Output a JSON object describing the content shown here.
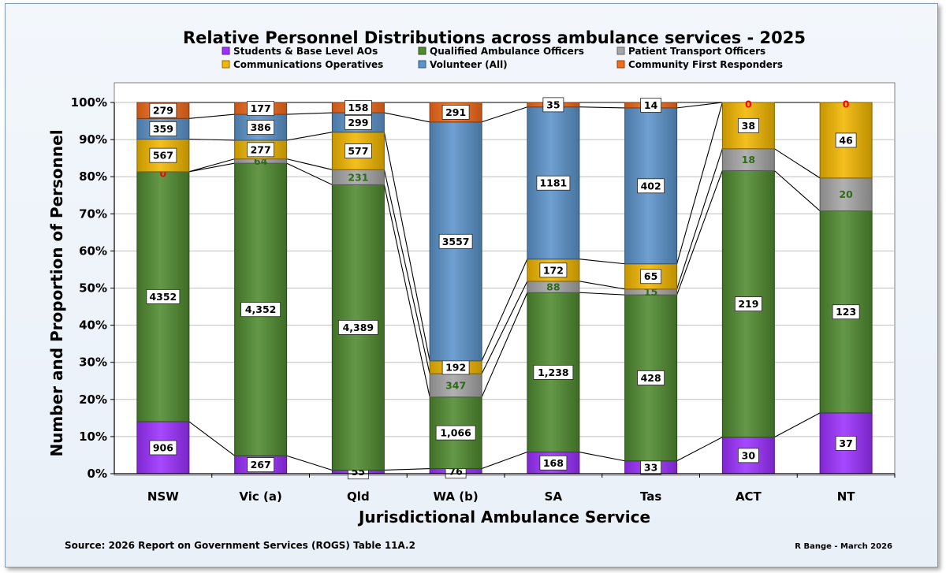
{
  "chart_data": {
    "type": "bar",
    "stacked": true,
    "normalized": true,
    "title": "Relative Personnel Distributions across ambulance services - 2025",
    "xlabel": "Jurisdictional Ambulance Service",
    "ylabel": "Number and Proportion of Personnel",
    "ylim": [
      0,
      100
    ],
    "y_ticks": [
      "0%",
      "10%",
      "20%",
      "30%",
      "40%",
      "50%",
      "60%",
      "70%",
      "80%",
      "90%",
      "100%"
    ],
    "categories": [
      "NSW",
      "Vic (a)",
      "Qld",
      "WA (b)",
      "SA",
      "Tas",
      "ACT",
      "NT"
    ],
    "series": [
      {
        "name": "Students & Base Level AOs",
        "color": "#9b30ff",
        "values": [
          906,
          267,
          55,
          76,
          168,
          33,
          30,
          37
        ],
        "labels": [
          "906",
          "267",
          "55",
          "76",
          "168",
          "33",
          "30",
          "37"
        ]
      },
      {
        "name": "Qualified Ambulance Officers",
        "color": "#4f8a2f",
        "values": [
          4352,
          4352,
          4389,
          1066,
          1238,
          428,
          219,
          123
        ],
        "labels": [
          "4352",
          "4,352",
          "4,389",
          "1,066",
          "1,238",
          "428",
          "219",
          "123"
        ]
      },
      {
        "name": "Patient Transport Officers",
        "color": "#a6a6a6",
        "values": [
          0,
          64,
          231,
          347,
          88,
          15,
          18,
          20
        ],
        "labels": [
          "0",
          "64",
          "231",
          "347",
          "88",
          "15",
          "18",
          "20"
        ]
      },
      {
        "name": "Communications Operatives",
        "color": "#f2b700",
        "values": [
          567,
          277,
          577,
          192,
          172,
          65,
          38,
          46
        ],
        "labels": [
          "567",
          "277",
          "577",
          "192",
          "172",
          "65",
          "38",
          "46"
        ]
      },
      {
        "name": "Volunteer (All)",
        "color": "#5b93cb",
        "values": [
          359,
          386,
          299,
          3557,
          1181,
          402,
          0,
          0
        ],
        "labels": [
          "359",
          "386",
          "299",
          "3557",
          "1181",
          "402",
          "",
          ""
        ]
      },
      {
        "name": "Community First Responders",
        "color": "#f26a1b",
        "values": [
          279,
          177,
          158,
          291,
          35,
          14,
          0,
          0
        ],
        "labels": [
          "279",
          "177",
          "158",
          "291",
          "35",
          "14",
          "0",
          "0"
        ]
      }
    ]
  },
  "footer": {
    "source": "Source: 2026 Report on Government Services (ROGS) Table 11A.2",
    "credit": "R Bange - March 2026"
  }
}
